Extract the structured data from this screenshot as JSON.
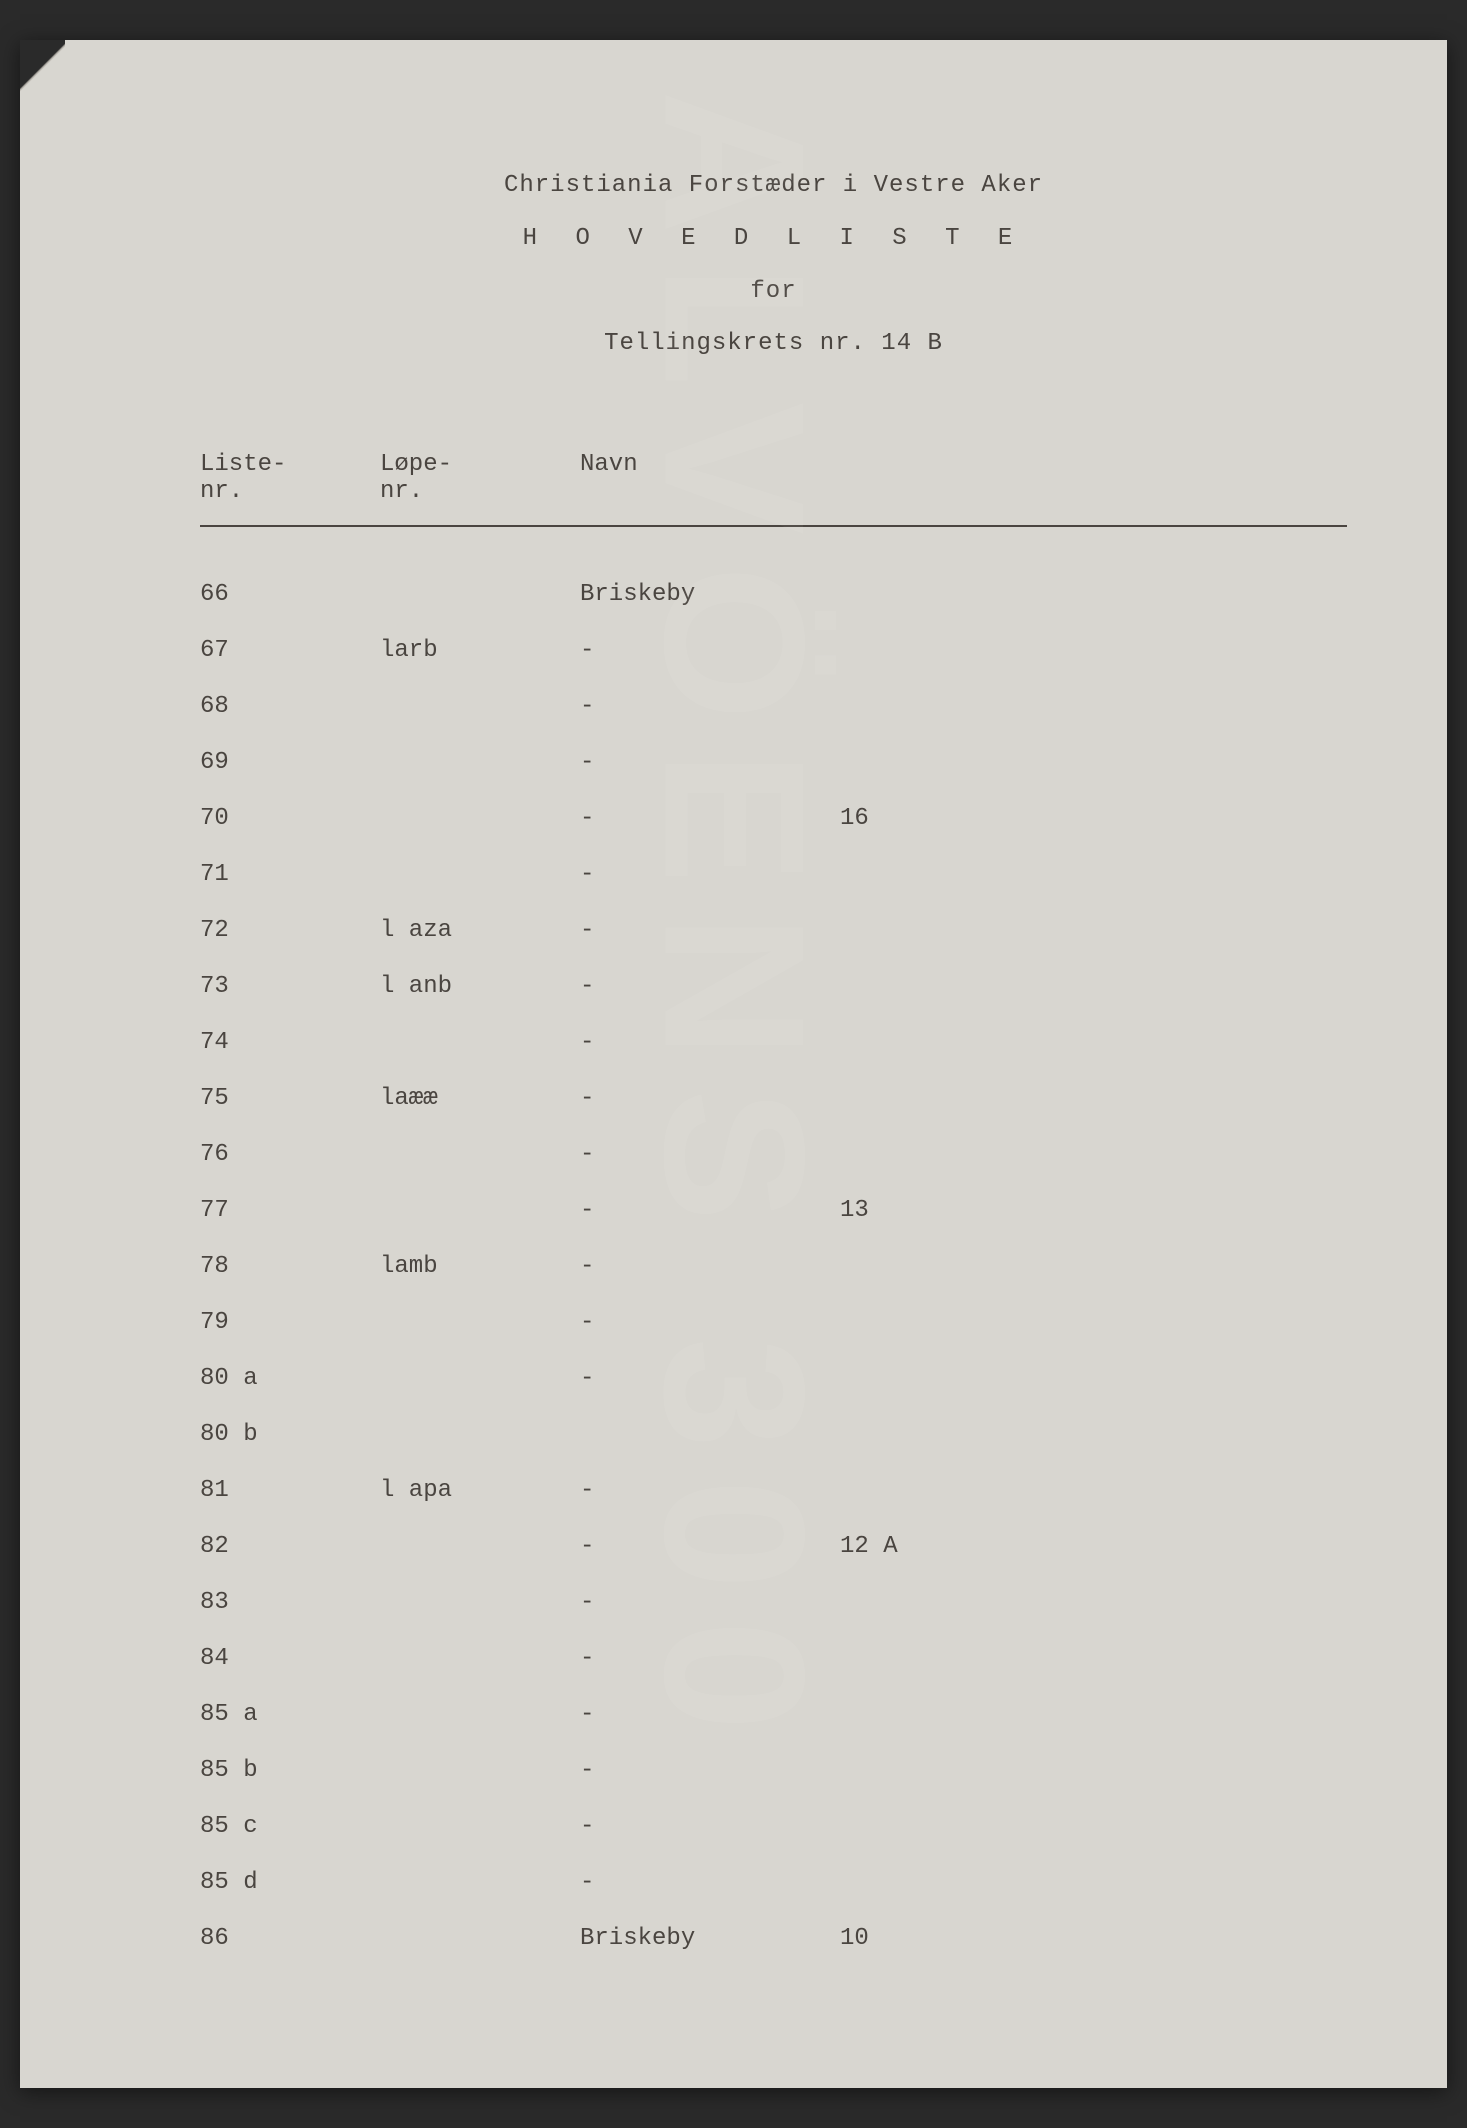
{
  "page": {
    "background_color": "#d8d6d0",
    "text_color": "#4a4540",
    "outer_background": "#2a2a2a",
    "font_family": "Courier New",
    "base_fontsize": 24
  },
  "watermark": {
    "text": "ALVÖENS 300",
    "color_opacity": 0.05
  },
  "header": {
    "line1": "Christiania Forstæder i Vestre Aker",
    "line2": "H O V E D L I S T E",
    "line3": "for",
    "line4": "Tellingskrets nr. 14 B"
  },
  "columns": {
    "liste": "Liste-\nnr.",
    "lope": "Løpe-\nnr.",
    "navn": "Navn"
  },
  "rows": [
    {
      "liste": "66",
      "lope": "",
      "navn": "Briskeby",
      "extra": ""
    },
    {
      "liste": "67",
      "lope": "larb",
      "navn": "-",
      "extra": ""
    },
    {
      "liste": "68",
      "lope": "",
      "navn": "-",
      "extra": ""
    },
    {
      "liste": "69",
      "lope": "",
      "navn": "-",
      "extra": ""
    },
    {
      "liste": "70",
      "lope": "",
      "navn": "-",
      "extra": "16"
    },
    {
      "liste": "71",
      "lope": "",
      "navn": "-",
      "extra": ""
    },
    {
      "liste": "72",
      "lope": "l aza",
      "navn": "-",
      "extra": ""
    },
    {
      "liste": "73",
      "lope": "l anb",
      "navn": "-",
      "extra": ""
    },
    {
      "liste": "74",
      "lope": "",
      "navn": "-",
      "extra": ""
    },
    {
      "liste": "75",
      "lope": "laææ",
      "navn": "-",
      "extra": ""
    },
    {
      "liste": "76",
      "lope": "",
      "navn": "-",
      "extra": ""
    },
    {
      "liste": "77",
      "lope": "",
      "navn": "-",
      "extra": "13"
    },
    {
      "liste": "78",
      "lope": "lamb",
      "navn": "-",
      "extra": ""
    },
    {
      "liste": "79",
      "lope": "",
      "navn": "-",
      "extra": ""
    },
    {
      "liste": "80 a",
      "lope": "",
      "navn": "-",
      "extra": ""
    },
    {
      "liste": "80 b",
      "lope": "",
      "navn": "",
      "extra": ""
    },
    {
      "liste": "81",
      "lope": "l apa",
      "navn": "-",
      "extra": ""
    },
    {
      "liste": "82",
      "lope": "",
      "navn": "-",
      "extra": "12 A"
    },
    {
      "liste": "83",
      "lope": "",
      "navn": "-",
      "extra": ""
    },
    {
      "liste": "84",
      "lope": "",
      "navn": "-",
      "extra": ""
    },
    {
      "liste": "85 a",
      "lope": "",
      "navn": "-",
      "extra": ""
    },
    {
      "liste": "85 b",
      "lope": "",
      "navn": "-",
      "extra": ""
    },
    {
      "liste": "85 c",
      "lope": "",
      "navn": "-",
      "extra": ""
    },
    {
      "liste": "85 d",
      "lope": "",
      "navn": "-",
      "extra": ""
    },
    {
      "liste": "86",
      "lope": "",
      "navn": "Briskeby",
      "extra": "10"
    }
  ]
}
